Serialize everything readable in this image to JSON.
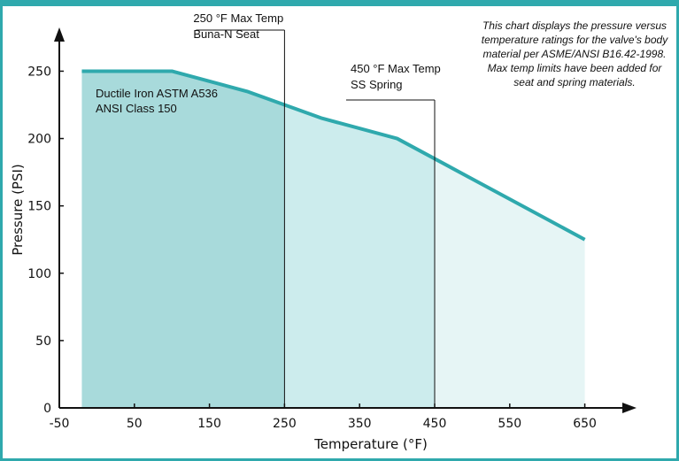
{
  "chart_data": {
    "type": "area",
    "xlabel": "Temperature (°F)",
    "ylabel": "Pressure (PSI)",
    "xlim": [
      -50,
      700
    ],
    "ylim": [
      0,
      270
    ],
    "x_ticks": [
      -50,
      50,
      150,
      250,
      350,
      450,
      550,
      650
    ],
    "y_ticks": [
      0,
      50,
      100,
      150,
      200,
      250
    ],
    "grid": false,
    "series": [
      {
        "x": [
          -20,
          100,
          200,
          300,
          400,
          500,
          600,
          650
        ],
        "y": [
          250,
          250,
          235,
          215,
          200,
          170,
          140,
          125
        ]
      }
    ],
    "vertical_markers": [
      {
        "x": 250,
        "label_lines": [
          "250 °F Max Temp",
          "Buna-N Seat"
        ]
      },
      {
        "x": 450,
        "label_lines": [
          "450 °F Max Temp",
          "SS Spring"
        ]
      }
    ],
    "region_label_lines": [
      "Ductile Iron ASTM A536",
      "ANSI Class 150"
    ],
    "note_lines": [
      "This chart displays the pressure versus",
      "temperature ratings for the valve's body",
      "material per  ASME/ANSI B16.42-1998.",
      "Max temp limits have been added for",
      "seat and spring materials."
    ],
    "colors": {
      "line": "#2fa9ad",
      "fill_dark": "#a8dadb",
      "fill_mid": "#cceced",
      "fill_light": "#e6f5f5",
      "frame": "#2fa9ad"
    }
  }
}
